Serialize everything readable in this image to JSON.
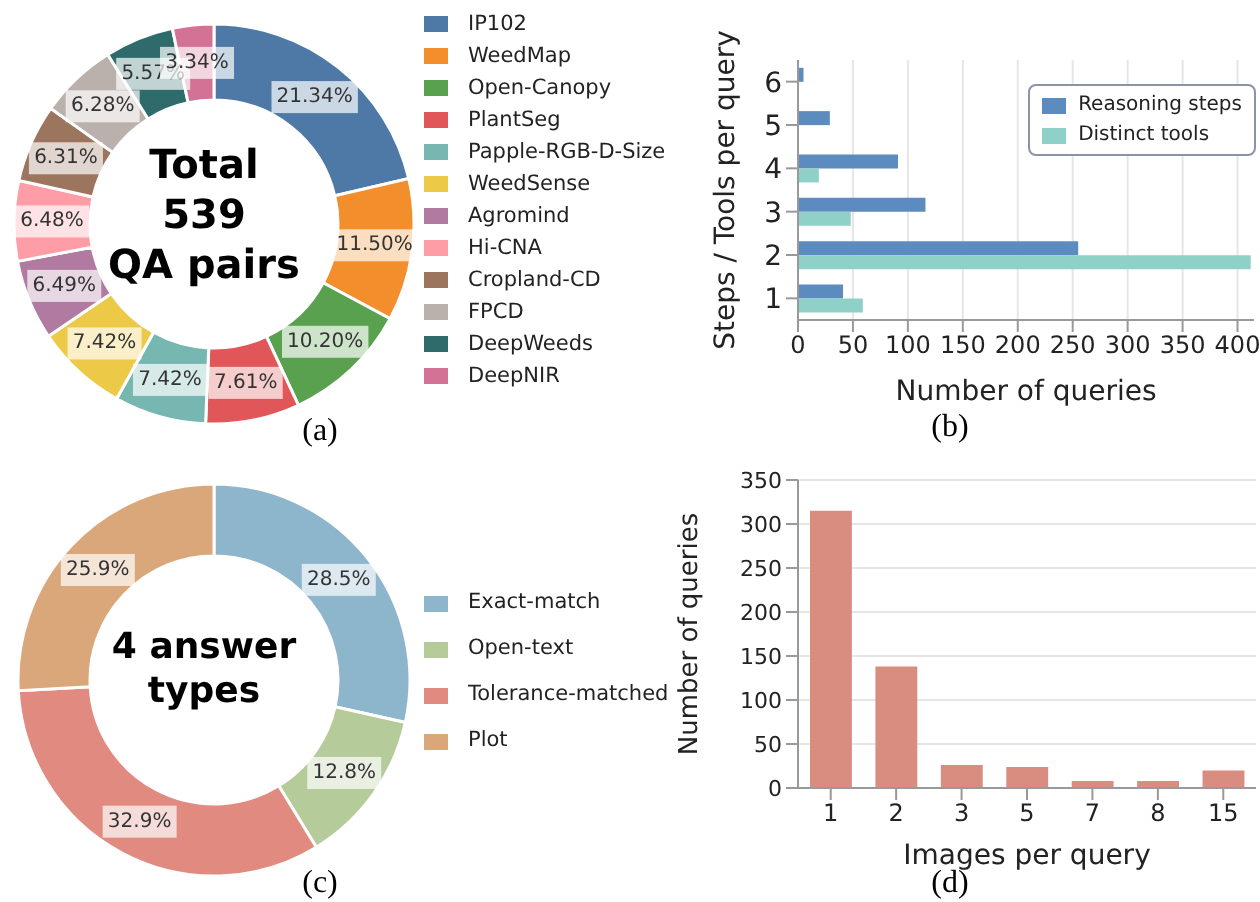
{
  "chart_data": [
    {
      "type": "donut",
      "title": "Total\n539\nQA pairs",
      "annotations": [
        "(a)"
      ],
      "legend": "right",
      "categories": [
        "IP102",
        "WeedMap",
        "Open-Canopy",
        "PlantSeg",
        "Papple-RGB-D-Size",
        "WeedSense",
        "Agromind",
        "Hi-CNA",
        "Cropland-CD",
        "FPCD",
        "DeepWeeds",
        "DeepNIR"
      ],
      "values": [
        21.34,
        11.5,
        10.2,
        7.61,
        7.42,
        7.42,
        6.49,
        6.48,
        6.31,
        6.28,
        5.57,
        3.34
      ],
      "value_labels": [
        "21.34%",
        "11.50%",
        "10.20%",
        "7.61%",
        "7.42%",
        "7.42%",
        "6.49%",
        "6.48%",
        "6.31%",
        "6.28%",
        "5.57%",
        "3.34%"
      ],
      "colors": [
        "#4e79a7",
        "#f28e2b",
        "#59a14f",
        "#e15759",
        "#76b7b2",
        "#edc948",
        "#b07aa1",
        "#ff9da7",
        "#9c755f",
        "#bab0ac",
        "#2f6b6b",
        "#d37295"
      ]
    },
    {
      "type": "bar",
      "orientation": "horizontal",
      "annotations": [
        "(b)"
      ],
      "xlabel": "Number of queries",
      "ylabel": "Steps / Tools per query",
      "legend": "top right",
      "grid": "x",
      "categories": [
        "6",
        "5",
        "4",
        "3",
        "2",
        "1"
      ],
      "xlim": [
        0,
        415
      ],
      "xticks": [
        0,
        50,
        100,
        150,
        200,
        250,
        300,
        350,
        400
      ],
      "series": [
        {
          "name": "Reasoning steps",
          "color": "#5b8bbf",
          "values": [
            5,
            29,
            91,
            116,
            255,
            41
          ]
        },
        {
          "name": "Distinct tools",
          "color": "#8fd0c9",
          "values": [
            null,
            null,
            19,
            48,
            412,
            59
          ]
        }
      ]
    },
    {
      "type": "donut",
      "title": "4 answer types",
      "annotations": [
        "(c)"
      ],
      "legend": "right",
      "categories": [
        "Exact-match",
        "Open-text",
        "Tolerance-matched",
        "Plot"
      ],
      "values": [
        28.5,
        12.8,
        32.9,
        25.9
      ],
      "value_labels": [
        "28.5%",
        "12.8%",
        "32.9%",
        "25.9%"
      ],
      "colors": [
        "#8db5cc",
        "#b5cb9a",
        "#e08a80",
        "#d9a77a"
      ]
    },
    {
      "type": "bar",
      "annotations": [
        "(d)"
      ],
      "xlabel": "Images per query",
      "ylabel": "Number of queries",
      "grid": "y",
      "categories": [
        "1",
        "2",
        "3",
        "5",
        "7",
        "8",
        "15"
      ],
      "ylim": [
        0,
        350
      ],
      "yticks": [
        0,
        50,
        100,
        150,
        200,
        250,
        300,
        350
      ],
      "values": [
        315,
        138,
        26,
        24,
        8,
        8,
        20
      ],
      "color": "#d98c80"
    }
  ]
}
